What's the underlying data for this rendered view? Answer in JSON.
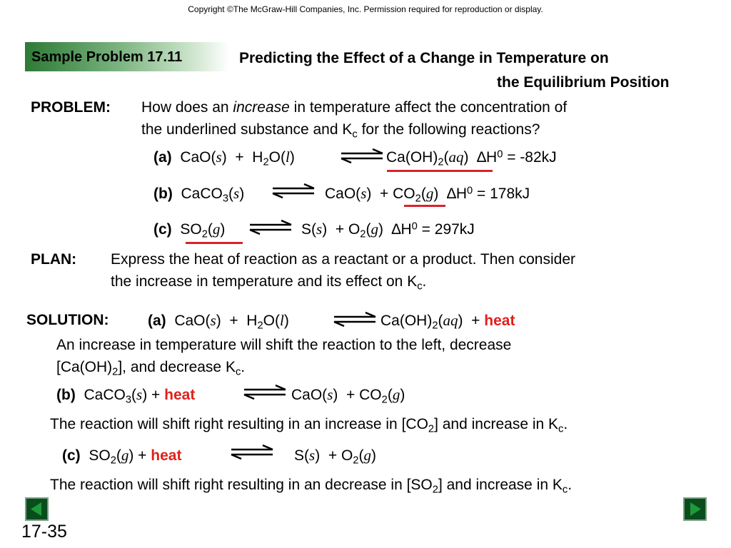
{
  "copyright": "Copyright ©The McGraw-Hill Companies, Inc.  Permission required for reproduction or display.",
  "header": {
    "label": "Sample Problem 17.11",
    "title_line1": "Predicting the Effect of a Change in Temperature on",
    "title_line2": "the Equilibrium Position"
  },
  "problem": {
    "label": "PROBLEM:",
    "line1_pre": "How does an",
    "line1_emph": "increase",
    "line1_post": "in temperature affect the concentration of",
    "line2_pre": "the underlined substance and K",
    "line2_sub": "c",
    "line2_post": " for the following reactions?"
  },
  "reactions": {
    "a": {
      "label": "(a)",
      "dh": "-82kJ"
    },
    "b": {
      "label": "(b)",
      "dh": "178kJ"
    },
    "c": {
      "label": "(c)",
      "dh": "297kJ"
    }
  },
  "plan": {
    "label": "PLAN:",
    "line1": "Express the heat of reaction as a reactant or a product.  Then consider",
    "line2_pre": "the increase in temperature and its effect on K",
    "line2_sub": "c",
    "line2_post": "."
  },
  "solution": {
    "label": "SOLUTION:",
    "heat_word": "heat",
    "a_text1": "An increase in temperature will shift the reaction to the left, decrease",
    "a_text2_pre": "[Ca(OH)",
    "a_text2_sub": "2",
    "a_text2_mid": "], and decrease K",
    "a_text2_sub2": "c",
    "a_text2_post": ".",
    "b_text_pre": "The reaction will shift right resulting in an increase in [CO",
    "b_text_sub": "2",
    "b_text_mid": "] and increase in K",
    "b_text_sub2": "c",
    "b_text_post": ".",
    "c_text_pre": "The reaction will shift right resulting in an decrease in [SO",
    "c_text_sub": "2",
    "c_text_mid": "] and increase in K",
    "c_text_sub2": "c",
    "c_text_post": "."
  },
  "nav": {
    "prev_icon": "triangle-left-icon",
    "next_icon": "triangle-right-icon",
    "page_number": "17-35"
  },
  "colors": {
    "highlight": "#e0201c",
    "banner": "#2d7a35",
    "nav": "#0a4d1c"
  }
}
